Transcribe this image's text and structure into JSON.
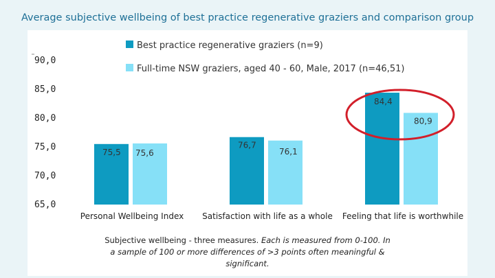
{
  "title": "Average subjective wellbeing of best practice regenerative graziers and comparison group",
  "note": {
    "lead": "Subjective wellbeing - three measures.",
    "detail": "Each is measured from 0-100. In a sample of 100 or more differences of >3 points often meaningful & significant."
  },
  "colors": {
    "series1": "#0e9bc1",
    "series2": "#86e0f7",
    "highlight": "#d21f2a"
  },
  "chart_data": {
    "type": "bar",
    "title": "Average subjective wellbeing of best practice regenerative graziers and comparison group",
    "categories": [
      "Personal Wellbeing Index",
      "Satisfaction with life as a whole",
      "Feeling that life is worthwhile"
    ],
    "series": [
      {
        "name": "Best practice regenerative graziers (n=9)",
        "values": [
          75.5,
          76.7,
          84.4
        ],
        "labels": [
          "75,5",
          "76,7",
          "84,4"
        ]
      },
      {
        "name": "Full-time NSW graziers, aged 40 - 60, Male, 2017 (n=46,51)",
        "values": [
          75.6,
          76.1,
          80.9
        ],
        "labels": [
          "75,6",
          "76,1",
          "80,9"
        ]
      }
    ],
    "ylim": [
      65,
      90
    ],
    "yticks": [
      65,
      70,
      75,
      80,
      85,
      90
    ],
    "ytick_labels": [
      "65,0",
      "70,0",
      "75,0",
      "80,0",
      "85,0",
      "90,0"
    ],
    "legend_position": "top",
    "annotation": "red ellipse around the 'Feeling that life is worthwhile' bars",
    "xlabel": "",
    "ylabel": "",
    "grid": false
  }
}
